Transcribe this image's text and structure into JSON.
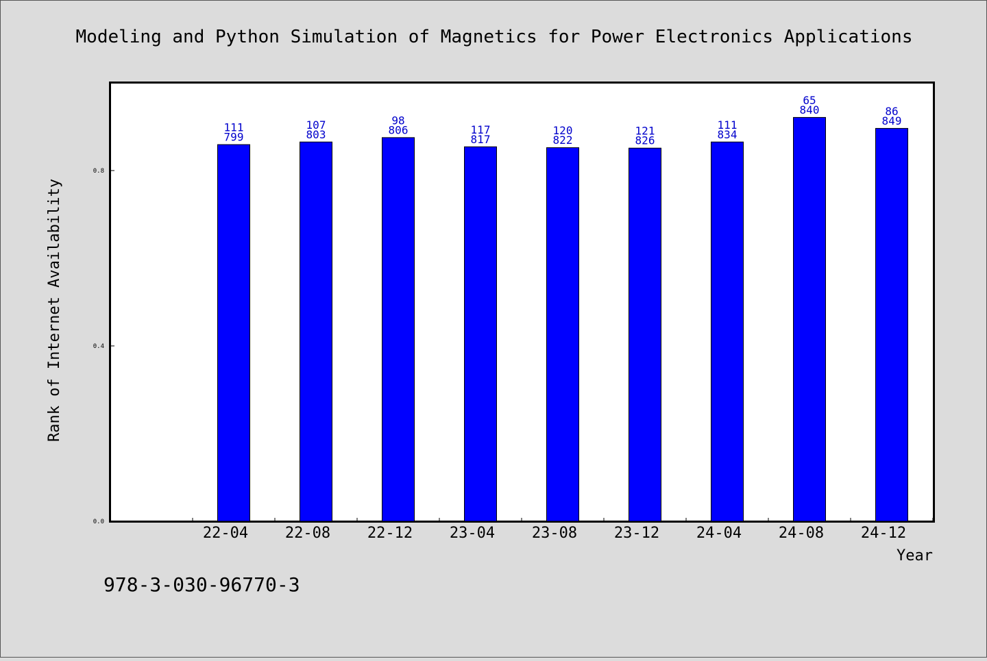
{
  "chart_data": {
    "type": "bar",
    "title": "Modeling and Python Simulation of Magnetics for Power Electronics Applications",
    "xlabel": "Year",
    "ylabel": "Rank of Internet Availability",
    "categories": [
      "22-04",
      "22-08",
      "22-12",
      "23-04",
      "23-08",
      "23-12",
      "24-04",
      "24-08",
      "24-12"
    ],
    "values": [
      0.86,
      0.866,
      0.876,
      0.855,
      0.853,
      0.852,
      0.866,
      0.922,
      0.897
    ],
    "labels_top": [
      "111",
      "107",
      "98",
      "117",
      "120",
      "121",
      "111",
      "65",
      "86"
    ],
    "labels_bottom": [
      "799",
      "803",
      "806",
      "817",
      "822",
      "826",
      "834",
      "840",
      "849"
    ],
    "yticks": [
      "0.0",
      "0.4",
      "0.8"
    ],
    "ytick_values": [
      0,
      0.4,
      0.8
    ],
    "ylim": [
      0,
      1.0
    ],
    "grid": false,
    "bar_color": "#0000ff",
    "label_color": "#0000cc"
  },
  "footer": {
    "isbn": "978-3-030-96770-3"
  }
}
